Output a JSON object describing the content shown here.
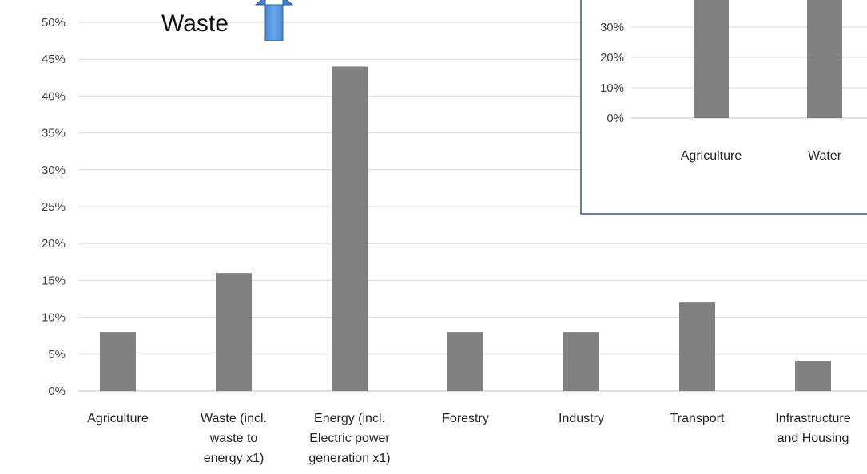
{
  "annotation": {
    "label": "Waste",
    "arrow_direction": "up",
    "arrow_color": "#4a86d0"
  },
  "chart_data": [
    {
      "type": "bar",
      "categories": [
        "Agriculture",
        "Waste (incl. waste to energy x1)",
        "Energy (incl. Electric power generation x1)",
        "Forestry",
        "Industry",
        "Transport",
        "Infrastructure and Housing"
      ],
      "category_lines": [
        [
          "Agriculture"
        ],
        [
          "Waste (incl.",
          "waste to",
          "energy x1)"
        ],
        [
          "Energy (incl.",
          "Electric power",
          "generation x1)"
        ],
        [
          "Forestry"
        ],
        [
          "Industry"
        ],
        [
          "Transport"
        ],
        [
          "Infrastructure",
          "and Housing"
        ]
      ],
      "values": [
        8,
        16,
        44,
        8,
        8,
        12,
        4
      ],
      "ylim": [
        0,
        50
      ],
      "yticks": [
        0,
        5,
        10,
        15,
        20,
        25,
        30,
        35,
        40,
        45,
        50
      ],
      "ytick_labels": [
        "0%",
        "5%",
        "10%",
        "15%",
        "20%",
        "25%",
        "30%",
        "35%",
        "40%",
        "45%",
        "50%"
      ],
      "grid": true,
      "bar_color": "#808080"
    },
    {
      "type": "bar",
      "categories": [
        "Agriculture",
        "Water"
      ],
      "values": [
        null,
        null
      ],
      "ylim": [
        0,
        40
      ],
      "yticks": [
        0,
        10,
        20,
        30
      ],
      "ytick_labels": [
        "0%",
        "10%",
        "20%",
        "30%"
      ],
      "grid": true,
      "bar_color": "#808080",
      "border_color": "#2f5597"
    }
  ]
}
